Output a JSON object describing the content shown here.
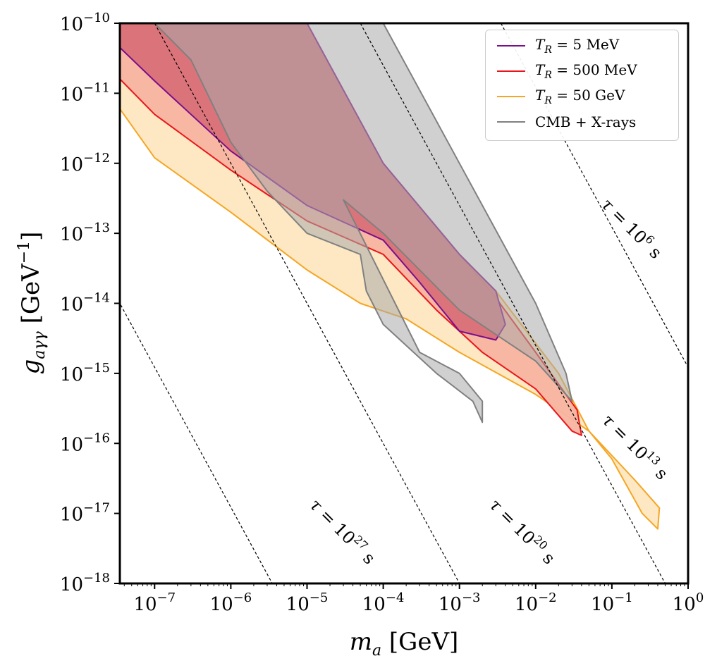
{
  "chart_data": {
    "type": "area",
    "xlabel": "m_a [GeV]",
    "ylabel": "g_aγγ [GeV⁻¹]",
    "x_scale": "log",
    "y_scale": "log",
    "xlim": [
      3.5e-08,
      1
    ],
    "ylim": [
      1e-18,
      1e-10
    ],
    "x_ticks": [
      {
        "value": 1e-07,
        "base": "10",
        "exp": "−7"
      },
      {
        "value": 1e-06,
        "base": "10",
        "exp": "−6"
      },
      {
        "value": 1e-05,
        "base": "10",
        "exp": "−5"
      },
      {
        "value": 0.0001,
        "base": "10",
        "exp": "−4"
      },
      {
        "value": 0.001,
        "base": "10",
        "exp": "−3"
      },
      {
        "value": 0.01,
        "base": "10",
        "exp": "−2"
      },
      {
        "value": 0.1,
        "base": "10",
        "exp": "−1"
      },
      {
        "value": 1,
        "base": "10",
        "exp": "0"
      }
    ],
    "y_ticks": [
      {
        "value": 1e-10,
        "base": "10",
        "exp": "−10"
      },
      {
        "value": 1e-11,
        "base": "10",
        "exp": "−11"
      },
      {
        "value": 1e-12,
        "base": "10",
        "exp": "−12"
      },
      {
        "value": 1e-13,
        "base": "10",
        "exp": "−13"
      },
      {
        "value": 1e-14,
        "base": "10",
        "exp": "−14"
      },
      {
        "value": 1e-15,
        "base": "10",
        "exp": "−15"
      },
      {
        "value": 1e-16,
        "base": "10",
        "exp": "−16"
      },
      {
        "value": 1e-17,
        "base": "10",
        "exp": "−17"
      },
      {
        "value": 1e-18,
        "base": "10",
        "exp": "−18"
      }
    ],
    "legend_position": "top-right",
    "grid": false,
    "series": [
      {
        "name": "T_R = 50 GeV",
        "label": {
          "prefix": "T",
          "sub": "R",
          "value": " = 50 GeV"
        },
        "color": "#f5a623",
        "fill": "#fde7c0",
        "points": [
          [
            3.5e-08,
            1e-10
          ],
          [
            3.5e-08,
            6e-12
          ],
          [
            1e-07,
            1.2e-12
          ],
          [
            1e-06,
            2e-13
          ],
          [
            1e-05,
            3e-14
          ],
          [
            5e-05,
            1e-14
          ],
          [
            0.0002,
            6e-15
          ],
          [
            0.001,
            2e-15
          ],
          [
            0.01,
            5e-16
          ],
          [
            0.05,
            1.5e-16
          ],
          [
            0.1,
            6e-17
          ],
          [
            0.25,
            1e-17
          ],
          [
            0.4,
            6e-18
          ],
          [
            0.42,
            1.2e-17
          ],
          [
            0.2,
            3e-17
          ],
          [
            0.05,
            1.5e-16
          ],
          [
            0.02,
            1e-15
          ],
          [
            0.003,
            1.5e-14
          ],
          [
            0.001,
            5e-14
          ],
          [
            0.0001,
            1e-12
          ],
          [
            1e-05,
            1e-10
          ]
        ]
      },
      {
        "name": "T_R = 500 MeV",
        "label": {
          "prefix": "T",
          "sub": "R",
          "value": " = 500 MeV"
        },
        "color": "#e8161c",
        "fill": "#f8b4a0",
        "points": [
          [
            3.5e-08,
            1e-10
          ],
          [
            3.5e-08,
            1.6e-11
          ],
          [
            1e-07,
            5e-12
          ],
          [
            1e-06,
            8e-13
          ],
          [
            1e-05,
            1.5e-13
          ],
          [
            0.0001,
            5e-14
          ],
          [
            0.0005,
            8e-15
          ],
          [
            0.002,
            2e-15
          ],
          [
            0.01,
            6e-16
          ],
          [
            0.03,
            1.5e-16
          ],
          [
            0.04,
            1.3e-16
          ],
          [
            0.035,
            3e-16
          ],
          [
            0.01,
            2e-15
          ],
          [
            0.003,
            1.2e-14
          ],
          [
            0.001,
            5e-14
          ],
          [
            0.0001,
            1e-12
          ],
          [
            1e-05,
            1e-10
          ]
        ]
      },
      {
        "name": "T_R = 5 MeV",
        "label": {
          "prefix": "T",
          "sub": "R",
          "value": " = 5 MeV"
        },
        "color": "#7a0f8a",
        "fill": "#d97078",
        "points": [
          [
            3.5e-08,
            1e-10
          ],
          [
            3.5e-08,
            4.5e-11
          ],
          [
            1e-07,
            1.5e-11
          ],
          [
            1e-06,
            1.5e-12
          ],
          [
            1e-05,
            2.5e-13
          ],
          [
            0.0001,
            8e-14
          ],
          [
            0.0003,
            2e-14
          ],
          [
            0.001,
            4e-15
          ],
          [
            0.003,
            3e-15
          ],
          [
            0.004,
            5e-15
          ],
          [
            0.003,
            1.5e-14
          ],
          [
            0.001,
            5e-14
          ],
          [
            0.0001,
            1e-12
          ],
          [
            1e-05,
            1e-10
          ]
        ]
      },
      {
        "name": "CMB + X-rays",
        "label": {
          "prefix": "CMB + X-rays",
          "sub": "",
          "value": ""
        },
        "color": "#808080",
        "fill": "#a9a9a9",
        "points": [
          [
            1e-07,
            1e-10
          ],
          [
            3e-07,
            3e-11
          ],
          [
            1e-06,
            2e-12
          ],
          [
            3e-06,
            4e-13
          ],
          [
            1e-05,
            1e-13
          ],
          [
            5e-05,
            5e-14
          ],
          [
            6e-05,
            1.5e-14
          ],
          [
            0.0001,
            5e-15
          ],
          [
            0.0005,
            1e-15
          ],
          [
            0.0015,
            4e-16
          ],
          [
            0.002,
            2e-16
          ],
          [
            0.002,
            4e-16
          ],
          [
            0.001,
            1e-15
          ],
          [
            0.0003,
            2e-15
          ],
          [
            3e-05,
            3e-13
          ],
          [
            0.0001,
            1e-13
          ],
          [
            0.001,
            8e-15
          ],
          [
            0.01,
            1.5e-15
          ],
          [
            0.03,
            4e-16
          ],
          [
            0.025,
            1e-15
          ],
          [
            0.01,
            1e-14
          ],
          [
            0.001,
            1e-12
          ],
          [
            0.0001,
            1e-10
          ]
        ]
      }
    ],
    "lifetime_lines": [
      {
        "label": "τ = 10",
        "exp": "6",
        "unit": " s",
        "x_at_top": 0.0035,
        "slope_decades": -2.0
      },
      {
        "label": "τ = 10",
        "exp": "13",
        "unit": " s",
        "x_at_top": 5e-05,
        "slope_decades": -2.0
      },
      {
        "label": "τ = 10",
        "exp": "20",
        "unit": " s",
        "x_at_top": 1e-07,
        "slope_decades": -2.0
      },
      {
        "label": "τ = 10",
        "exp": "27",
        "unit": " s",
        "x_at_top": 3.5e-10,
        "slope_decades": -2.0
      }
    ]
  }
}
